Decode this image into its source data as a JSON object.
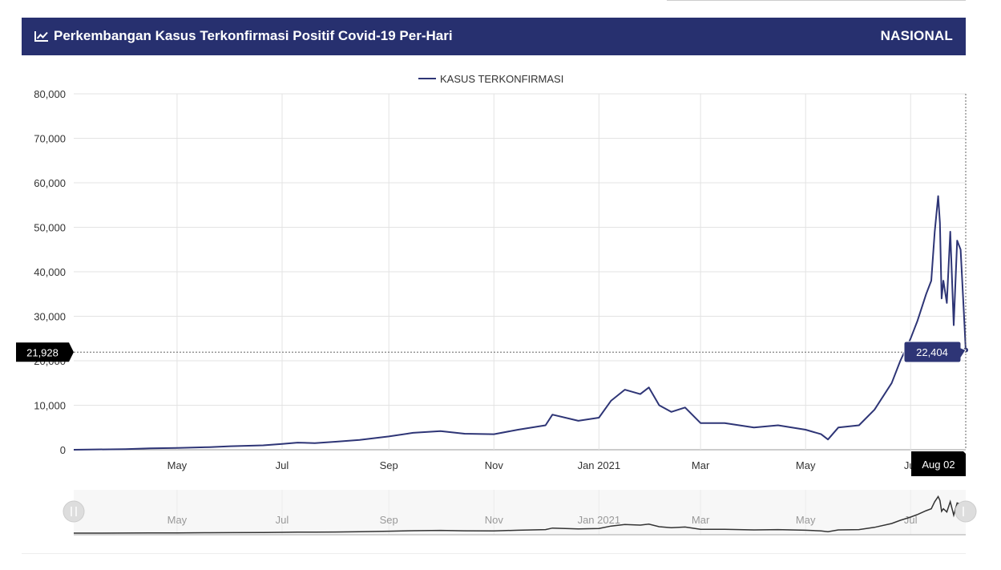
{
  "header": {
    "title": "Perkembangan Kasus Terkonfirmasi Positif Covid-19 Per-Hari",
    "region": "NASIONAL",
    "icon": "line-chart-icon",
    "background": "#27306f"
  },
  "chart_data": {
    "type": "line",
    "legend": "KASUS TERKONFIRMASI",
    "legend_position": "top-center",
    "series_color": "#2e3576",
    "navigator_color": "#333333",
    "grid": true,
    "ylim": [
      0,
      80000
    ],
    "yticks": [
      "0",
      "10,000",
      "20,000",
      "30,000",
      "40,000",
      "50,000",
      "60,000",
      "70,000",
      "80,000"
    ],
    "xlim": [
      "2020-03-02",
      "2021-08-02"
    ],
    "xticks": [
      {
        "date": "2020-05-01",
        "label": "May"
      },
      {
        "date": "2020-07-01",
        "label": "Jul"
      },
      {
        "date": "2020-09-01",
        "label": "Sep"
      },
      {
        "date": "2020-11-01",
        "label": "Nov"
      },
      {
        "date": "2021-01-01",
        "label": "Jan 2021"
      },
      {
        "date": "2021-03-01",
        "label": "Mar"
      },
      {
        "date": "2021-05-01",
        "label": "May"
      },
      {
        "date": "2021-07-01",
        "label": "Jul"
      }
    ],
    "crosshair_y_label": "21,928",
    "crosshair_x_label": "Aug 02",
    "tooltip_value": "22,404",
    "x": [
      "2020-03-02",
      "2020-04-01",
      "2020-04-15",
      "2020-05-01",
      "2020-05-20",
      "2020-06-01",
      "2020-06-20",
      "2020-07-01",
      "2020-07-10",
      "2020-07-20",
      "2020-08-01",
      "2020-08-15",
      "2020-09-01",
      "2020-09-15",
      "2020-10-01",
      "2020-10-15",
      "2020-11-01",
      "2020-11-15",
      "2020-12-01",
      "2020-12-05",
      "2020-12-20",
      "2021-01-01",
      "2021-01-08",
      "2021-01-16",
      "2021-01-25",
      "2021-01-30",
      "2021-02-05",
      "2021-02-12",
      "2021-02-20",
      "2021-03-01",
      "2021-03-15",
      "2021-04-01",
      "2021-04-15",
      "2021-05-01",
      "2021-05-10",
      "2021-05-14",
      "2021-05-20",
      "2021-06-01",
      "2021-06-10",
      "2021-06-20",
      "2021-06-25",
      "2021-07-01",
      "2021-07-05",
      "2021-07-10",
      "2021-07-13",
      "2021-07-15",
      "2021-07-17",
      "2021-07-18",
      "2021-07-19",
      "2021-07-20",
      "2021-07-22",
      "2021-07-24",
      "2021-07-26",
      "2021-07-28",
      "2021-07-30",
      "2021-08-01",
      "2021-08-02"
    ],
    "values": [
      2,
      150,
      300,
      400,
      600,
      800,
      1000,
      1300,
      1600,
      1500,
      1800,
      2200,
      3000,
      3800,
      4200,
      3600,
      3500,
      4500,
      5500,
      7900,
      6500,
      7200,
      11000,
      13500,
      12500,
      14000,
      10000,
      8500,
      9500,
      6000,
      6000,
      5000,
      5500,
      4500,
      3500,
      2300,
      5000,
      5500,
      9000,
      15000,
      20000,
      25000,
      29000,
      35000,
      38000,
      49000,
      57000,
      51000,
      34000,
      38000,
      33000,
      49000,
      28000,
      47000,
      45000,
      30000,
      22404
    ]
  }
}
